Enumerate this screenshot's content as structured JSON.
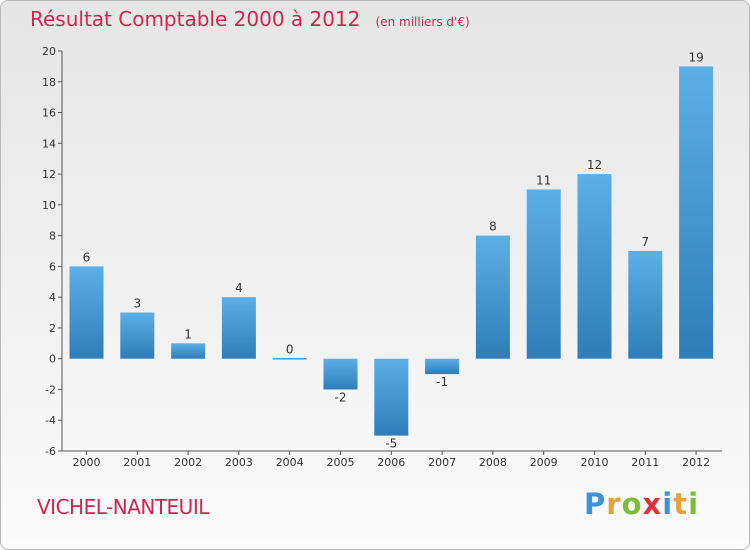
{
  "colors": {
    "accent": "#d0254f",
    "bar_top": "#5dafe7",
    "bar_bottom": "#2e7db8",
    "axis": "#555555"
  },
  "commune": "VICHEL-NANTEUIL",
  "brand": {
    "letters": [
      {
        "char": "P",
        "color": "#3c93d6"
      },
      {
        "char": "r",
        "color": "#e8a23a"
      },
      {
        "char": "o",
        "color": "#7cbd3c"
      },
      {
        "char": "x",
        "color": "#d8343f"
      },
      {
        "char": "i",
        "color": "#3c93d6"
      },
      {
        "char": "t",
        "color": "#e8a23a"
      },
      {
        "char": "i",
        "color": "#7cbd3c"
      }
    ]
  },
  "chart_data": {
    "type": "bar",
    "title": "Résultat Comptable 2000 à 2012",
    "subtitle": "(en milliers d'€)",
    "categories": [
      "2000",
      "2001",
      "2002",
      "2003",
      "2004",
      "2005",
      "2006",
      "2007",
      "2008",
      "2009",
      "2010",
      "2011",
      "2012"
    ],
    "values": [
      6,
      3,
      1,
      4,
      0,
      -2,
      -5,
      -1,
      8,
      11,
      12,
      7,
      19
    ],
    "ylim": [
      -6,
      20
    ],
    "yticks": [
      -6,
      -4,
      -2,
      0,
      2,
      4,
      6,
      8,
      10,
      12,
      14,
      16,
      18,
      20
    ],
    "xlabel": "",
    "ylabel": "",
    "grid": false,
    "legend": "none"
  }
}
